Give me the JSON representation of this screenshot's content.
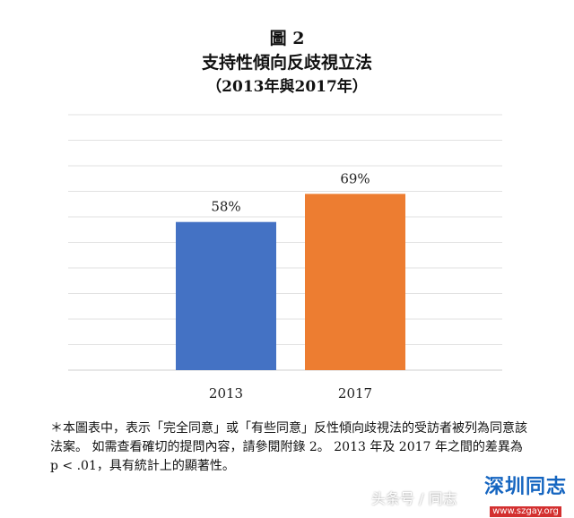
{
  "figure": {
    "label": "圖 2",
    "title": "支持性傾向反歧視立法",
    "subtitle": "（2013年與2017年）"
  },
  "chart_data": {
    "type": "bar",
    "categories": [
      "2013",
      "2017"
    ],
    "values": [
      58,
      69
    ],
    "data_labels": [
      "58%",
      "69%"
    ],
    "ylim": [
      0,
      100
    ],
    "grid": true,
    "colors": [
      "#4472c4",
      "#ed7d31"
    ],
    "xlabel": "",
    "ylabel": ""
  },
  "footnote": "＊本圖表中，表示「完全同意」或「有些同意」反性傾向歧視法的受訪者被列為同意該法案。 如需查看確切的提問內容，請參閱附錄 2。 2013 年及 2017 年之間的差異為 p < .01，具有統計上的顯著性。",
  "watermark": {
    "text": "头条号 / 同志",
    "logo": "深圳同志",
    "logo_url": "www.szgay.org"
  }
}
